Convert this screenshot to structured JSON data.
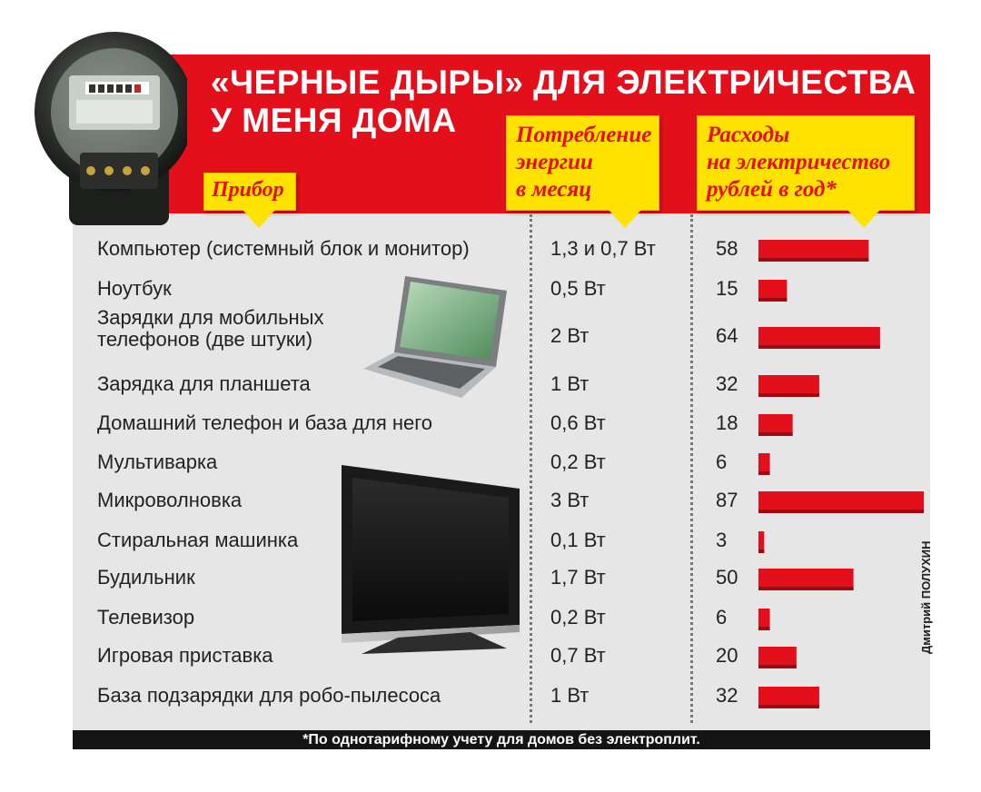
{
  "title": {
    "line1": "«ЧЕРНЫЕ ДЫРЫ» ДЛЯ ЭЛЕКТРИЧЕСТВА",
    "line2": "У МЕНЯ ДОМА"
  },
  "headers": {
    "device": "Прибор",
    "energy": "Потребление\nэнергии\nв месяц",
    "cost": "Расходы\nна электричество\nрублей в год*"
  },
  "footnote": "*По однотарифному учету для домов без электроплит.",
  "credit": "Дмитрий ПОЛУХИН",
  "colors": {
    "accent_red": "#e3101c",
    "tag_yellow": "#ffe200",
    "bar_red": "#e3101c",
    "panel_grey": "#e6e6e6"
  },
  "chart_data": {
    "type": "bar",
    "orientation": "horizontal",
    "categories": [
      "Компьютер (системный блок и монитор)",
      "Ноутбук",
      "Зарядки для мобильных телефонов (две штуки)",
      "Зарядка для планшета",
      "Домашний телефон и база для него",
      "Мультиварка",
      "Микроволновка",
      "Стиральная машинка",
      "Будильник",
      "Телевизор",
      "Игровая приставка",
      "База подзарядки для робо-пылесоса"
    ],
    "energy": [
      "1,3 и 0,7 Вт",
      "0,5 Вт",
      "2 Вт",
      "1 Вт",
      "0,6 Вт",
      "0,2 Вт",
      "3 Вт",
      "0,1 Вт",
      "1,7 Вт",
      "0,2 Вт",
      "0,7 Вт",
      "1 Вт"
    ],
    "values": [
      58,
      15,
      64,
      32,
      18,
      6,
      87,
      3,
      50,
      6,
      20,
      32
    ],
    "xlim": [
      0,
      87
    ],
    "legend": "none",
    "grid": false
  }
}
